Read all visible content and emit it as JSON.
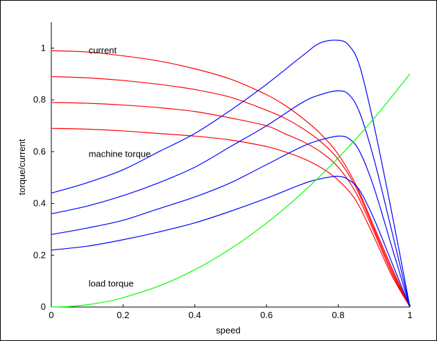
{
  "chart_data": {
    "type": "line",
    "xlabel": "speed",
    "ylabel": "torque/current",
    "xlim": [
      0,
      1
    ],
    "ylim": [
      0,
      1.1
    ],
    "x_ticks": [
      0,
      0.2,
      0.4,
      0.6,
      0.8,
      1
    ],
    "x_tick_labels": [
      "0",
      "0.2",
      "0.4",
      "0.6",
      "0.8",
      "1"
    ],
    "y_ticks": [
      0,
      0.2,
      0.4,
      0.6,
      0.8,
      1
    ],
    "y_tick_labels": [
      "0",
      "0.2",
      "0.4",
      "0.6",
      "0.8",
      "1"
    ],
    "grid": false,
    "annotations": [
      {
        "text": "current",
        "x": 0.1,
        "y": 0.99
      },
      {
        "text": "machine torque",
        "x": 0.1,
        "y": 0.59
      },
      {
        "text": "load torque",
        "x": 0.1,
        "y": 0.09
      }
    ],
    "colors": {
      "current": "#ff0000",
      "machine_torque": "#0000ff",
      "load_torque": "#00ff00"
    },
    "series": [
      {
        "group": "current",
        "color": "#ff0000",
        "x": [
          0,
          0.1,
          0.2,
          0.3,
          0.4,
          0.5,
          0.6,
          0.65,
          0.7,
          0.75,
          0.8,
          0.85,
          0.9,
          0.95,
          1.0
        ],
        "y": [
          0.99,
          0.985,
          0.97,
          0.95,
          0.92,
          0.88,
          0.82,
          0.78,
          0.73,
          0.67,
          0.59,
          0.47,
          0.31,
          0.15,
          0.0
        ]
      },
      {
        "group": "current",
        "color": "#ff0000",
        "x": [
          0,
          0.1,
          0.2,
          0.3,
          0.4,
          0.5,
          0.6,
          0.65,
          0.7,
          0.75,
          0.8,
          0.85,
          0.9,
          0.95,
          1.0
        ],
        "y": [
          0.89,
          0.885,
          0.875,
          0.86,
          0.84,
          0.81,
          0.76,
          0.73,
          0.69,
          0.64,
          0.57,
          0.46,
          0.3,
          0.14,
          0.0
        ]
      },
      {
        "group": "current",
        "color": "#ff0000",
        "x": [
          0,
          0.1,
          0.2,
          0.3,
          0.4,
          0.5,
          0.6,
          0.65,
          0.7,
          0.75,
          0.8,
          0.85,
          0.9,
          0.95,
          1.0
        ],
        "y": [
          0.79,
          0.787,
          0.78,
          0.77,
          0.755,
          0.73,
          0.7,
          0.67,
          0.64,
          0.6,
          0.54,
          0.44,
          0.29,
          0.13,
          0.0
        ]
      },
      {
        "group": "current",
        "color": "#ff0000",
        "x": [
          0,
          0.1,
          0.2,
          0.3,
          0.4,
          0.5,
          0.6,
          0.65,
          0.7,
          0.75,
          0.8,
          0.85,
          0.9,
          0.95,
          1.0
        ],
        "y": [
          0.69,
          0.687,
          0.68,
          0.67,
          0.66,
          0.645,
          0.62,
          0.6,
          0.575,
          0.54,
          0.49,
          0.41,
          0.27,
          0.12,
          0.0
        ]
      },
      {
        "group": "machine torque",
        "color": "#0000ff",
        "x": [
          0,
          0.1,
          0.2,
          0.3,
          0.4,
          0.5,
          0.6,
          0.7,
          0.75,
          0.8,
          0.83,
          0.86,
          0.9,
          0.95,
          1.0
        ],
        "y": [
          0.44,
          0.48,
          0.53,
          0.6,
          0.67,
          0.76,
          0.86,
          0.97,
          1.02,
          1.03,
          1.01,
          0.93,
          0.7,
          0.36,
          0.0
        ]
      },
      {
        "group": "machine torque",
        "color": "#0000ff",
        "x": [
          0,
          0.1,
          0.2,
          0.3,
          0.4,
          0.5,
          0.6,
          0.7,
          0.75,
          0.8,
          0.83,
          0.86,
          0.9,
          0.95,
          1.0
        ],
        "y": [
          0.36,
          0.39,
          0.43,
          0.48,
          0.54,
          0.62,
          0.7,
          0.79,
          0.82,
          0.835,
          0.82,
          0.75,
          0.57,
          0.29,
          0.0
        ]
      },
      {
        "group": "machine torque",
        "color": "#0000ff",
        "x": [
          0,
          0.1,
          0.2,
          0.3,
          0.4,
          0.5,
          0.6,
          0.7,
          0.75,
          0.8,
          0.83,
          0.86,
          0.9,
          0.95,
          1.0
        ],
        "y": [
          0.28,
          0.305,
          0.335,
          0.38,
          0.425,
          0.48,
          0.55,
          0.62,
          0.645,
          0.66,
          0.65,
          0.6,
          0.46,
          0.23,
          0.0
        ]
      },
      {
        "group": "machine torque",
        "color": "#0000ff",
        "x": [
          0,
          0.1,
          0.2,
          0.3,
          0.4,
          0.5,
          0.6,
          0.7,
          0.75,
          0.8,
          0.83,
          0.86,
          0.9,
          0.95,
          1.0
        ],
        "y": [
          0.22,
          0.235,
          0.26,
          0.29,
          0.325,
          0.37,
          0.42,
          0.475,
          0.495,
          0.505,
          0.49,
          0.45,
          0.34,
          0.17,
          0.0
        ]
      },
      {
        "group": "load torque",
        "color": "#00ff00",
        "x": [
          0,
          0.05,
          0.1,
          0.15,
          0.2,
          0.3,
          0.4,
          0.5,
          0.6,
          0.7,
          0.8,
          0.9,
          1.0
        ],
        "y": [
          0.0,
          0.002,
          0.009,
          0.02,
          0.036,
          0.081,
          0.144,
          0.225,
          0.324,
          0.441,
          0.576,
          0.729,
          0.9
        ]
      }
    ]
  }
}
